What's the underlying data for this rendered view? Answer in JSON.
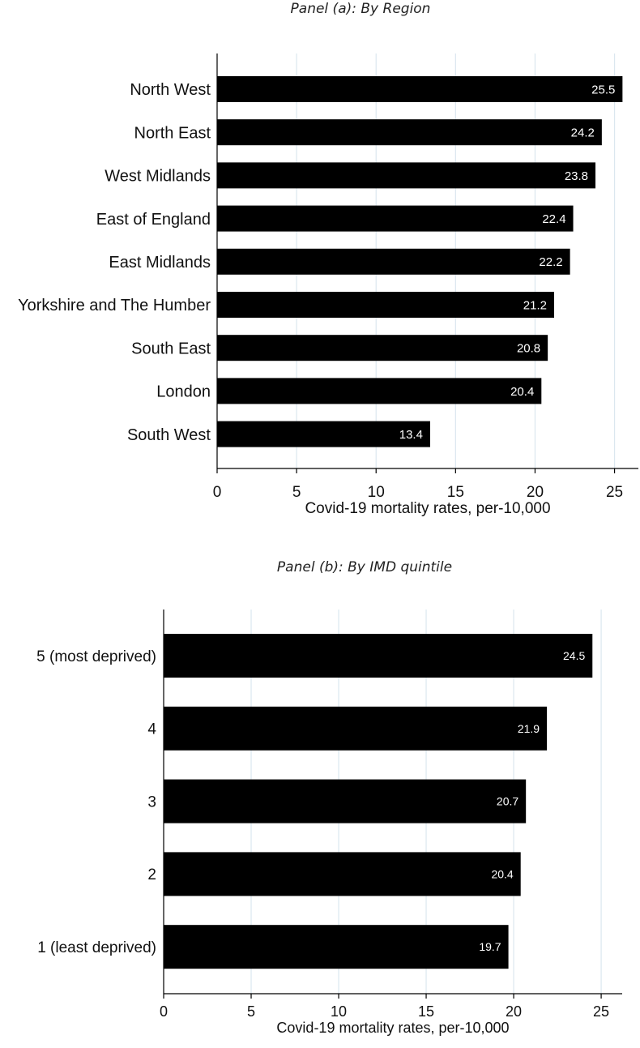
{
  "panels": {
    "a": {
      "title": "Panel (a): By Region"
    },
    "b": {
      "title": "Panel (b): By IMD quintile"
    }
  },
  "colors": {
    "bar": "#000000",
    "grid": "#dbe7ef",
    "axis": "#000000",
    "label_text": "#ffffff"
  },
  "chart_data": [
    {
      "type": "bar",
      "orientation": "horizontal",
      "title": "Panel (a): By Region",
      "categories": [
        "North West",
        "North East",
        "West Midlands",
        "East of England",
        "East Midlands",
        "Yorkshire and The Humber",
        "South East",
        "London",
        "South West"
      ],
      "values": [
        25.5,
        24.2,
        23.8,
        22.4,
        22.2,
        21.2,
        20.8,
        20.4,
        13.4
      ],
      "value_labels": [
        "25.5",
        "24.2",
        "23.8",
        "22.4",
        "22.2",
        "21.2",
        "20.8",
        "20.4",
        "13.4"
      ],
      "xlabel": "Covid-19 mortality rates, per-10,000",
      "ylabel": "",
      "xlim": [
        0,
        26.5
      ],
      "xticks": [
        0,
        5,
        10,
        15,
        20,
        25
      ],
      "xtick_labels": [
        "0",
        "5",
        "10",
        "15",
        "20",
        "25"
      ],
      "grid": true,
      "legend": "none"
    },
    {
      "type": "bar",
      "orientation": "horizontal",
      "title": "Panel (b): By IMD quintile",
      "categories": [
        "5 (most deprived)",
        "4",
        "3",
        "2",
        "1 (least deprived)"
      ],
      "values": [
        24.5,
        21.9,
        20.7,
        20.4,
        19.7
      ],
      "value_labels": [
        "24.5",
        "21.9",
        "20.7",
        "20.4",
        "19.7"
      ],
      "xlabel": "Covid-19 mortality rates, per-10,000",
      "ylabel": "",
      "xlim": [
        0,
        26.2
      ],
      "xticks": [
        0,
        5,
        10,
        15,
        20,
        25
      ],
      "xtick_labels": [
        "0",
        "5",
        "10",
        "15",
        "20",
        "25"
      ],
      "grid": true,
      "legend": "none"
    }
  ]
}
